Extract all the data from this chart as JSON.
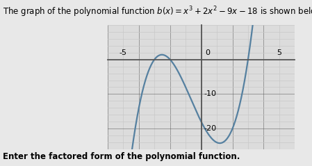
{
  "title": "The graph of the polynomial function $b(x) = x^3 + 2x^2 - 9x - 18$ is shown below",
  "footer": "Enter the factored form of the polynomial function.",
  "xmin": -6,
  "xmax": 6,
  "ymin": -26,
  "ymax": 10,
  "xtick_labels": [
    "-5",
    "0",
    "5"
  ],
  "xtick_vals": [
    -5,
    0,
    5
  ],
  "ytick_labels": [
    "-10",
    "-20"
  ],
  "ytick_vals": [
    -10,
    -20
  ],
  "line_color": "#5580a0",
  "line_width": 1.6,
  "bg_color": "#e8e8e8",
  "plot_bg_color": "#dcdcdc",
  "grid_color": "#c8c8c8",
  "axis_color": "#555555",
  "title_fontsize": 8.5,
  "footer_fontsize": 8.5,
  "tick_fontsize": 8
}
